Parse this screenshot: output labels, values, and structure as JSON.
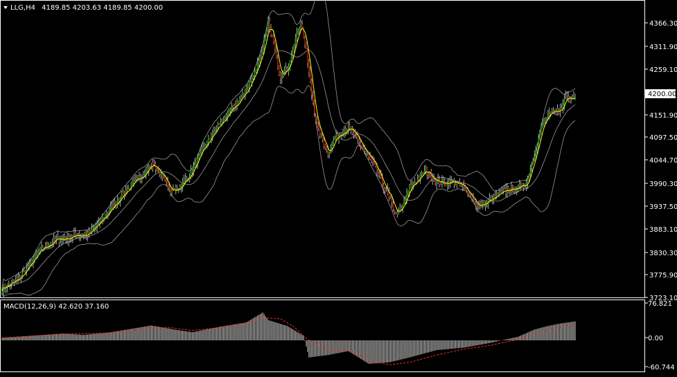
{
  "header": {
    "symbol_timeframe": "LLG,H4",
    "ohlc": "4189.85 4203.63 4189.85 4200.00"
  },
  "price_axis": {
    "ticks": [
      "4366.30",
      "4311.90",
      "4259.10",
      "4151.90",
      "4097.50",
      "4044.70",
      "3990.30",
      "3937.50",
      "3883.10",
      "3830.30",
      "3775.90",
      "3723.10"
    ],
    "current_price_label": "4200.00"
  },
  "macd": {
    "label": "MACD(12,26,9) 42.620 37.160",
    "ticks": [
      "76.821",
      "0.00",
      "-60.744"
    ]
  },
  "colors": {
    "background": "#000000",
    "bull_candle": "#1fc41f",
    "bear_candle": "#e01414",
    "wick": "#d0d0d0",
    "ma_line": "#ffff00",
    "bands": "#9a9a9a",
    "macd_hist": "#e6e6e6",
    "macd_signal": "#ff2a2a",
    "axis": "#ffffff"
  },
  "chart_data": [
    {
      "type": "candlestick",
      "symbol": "LLG",
      "timeframe": "H4",
      "ylim": [
        3723.1,
        4390
      ],
      "yticks": [
        4366.3,
        4311.9,
        4259.1,
        4151.9,
        4097.5,
        4044.7,
        3990.3,
        3937.5,
        3883.1,
        3830.3,
        3775.9,
        3723.1
      ],
      "last_price": 4200.0,
      "overlays": [
        "moving average",
        "bollinger bands"
      ],
      "close_path": [
        [
          0,
          3745
        ],
        [
          12,
          3765
        ],
        [
          20,
          3800
        ],
        [
          28,
          3835
        ],
        [
          35,
          3850
        ],
        [
          40,
          3860
        ],
        [
          48,
          3862
        ],
        [
          55,
          3870
        ],
        [
          63,
          3870
        ],
        [
          72,
          3900
        ],
        [
          82,
          3940
        ],
        [
          90,
          3970
        ],
        [
          100,
          4000
        ],
        [
          110,
          4035
        ],
        [
          118,
          4010
        ],
        [
          124,
          3970
        ],
        [
          130,
          3980
        ],
        [
          138,
          4010
        ],
        [
          148,
          4070
        ],
        [
          158,
          4120
        ],
        [
          168,
          4160
        ],
        [
          178,
          4200
        ],
        [
          186,
          4250
        ],
        [
          192,
          4310
        ],
        [
          196,
          4370
        ],
        [
          200,
          4320
        ],
        [
          204,
          4240
        ],
        [
          210,
          4260
        ],
        [
          214,
          4310
        ],
        [
          220,
          4370
        ],
        [
          224,
          4300
        ],
        [
          228,
          4200
        ],
        [
          232,
          4120
        ],
        [
          236,
          4090
        ],
        [
          240,
          4060
        ],
        [
          244,
          4090
        ],
        [
          250,
          4110
        ],
        [
          255,
          4120
        ],
        [
          262,
          4090
        ],
        [
          268,
          4060
        ],
        [
          274,
          4030
        ],
        [
          280,
          3990
        ],
        [
          286,
          3950
        ],
        [
          290,
          3920
        ],
        [
          294,
          3930
        ],
        [
          300,
          3980
        ],
        [
          306,
          4000
        ],
        [
          312,
          4020
        ],
        [
          318,
          4000
        ],
        [
          324,
          3990
        ],
        [
          332,
          3995
        ],
        [
          340,
          3980
        ],
        [
          346,
          3960
        ],
        [
          350,
          3935
        ],
        [
          356,
          3945
        ],
        [
          364,
          3960
        ],
        [
          372,
          3975
        ],
        [
          380,
          3980
        ],
        [
          386,
          3990
        ],
        [
          392,
          4060
        ],
        [
          398,
          4130
        ],
        [
          402,
          4150
        ],
        [
          408,
          4160
        ],
        [
          412,
          4165
        ],
        [
          415,
          4200
        ],
        [
          418,
          4190
        ],
        [
          422,
          4200
        ]
      ]
    },
    {
      "type": "bar",
      "name": "MACD(12,26,9)",
      "values_printed": {
        "macd": 42.62,
        "signal": 37.16
      },
      "ylim": [
        -60.744,
        76.821
      ],
      "yticks": [
        76.821,
        0.0,
        -60.744
      ],
      "hist_path": [
        [
          0,
          5
        ],
        [
          20,
          10
        ],
        [
          45,
          15
        ],
        [
          60,
          12
        ],
        [
          80,
          18
        ],
        [
          110,
          33
        ],
        [
          125,
          25
        ],
        [
          140,
          18
        ],
        [
          160,
          30
        ],
        [
          180,
          40
        ],
        [
          192,
          62
        ],
        [
          196,
          45
        ],
        [
          210,
          32
        ],
        [
          222,
          10
        ],
        [
          226,
          -35
        ],
        [
          240,
          -30
        ],
        [
          255,
          -22
        ],
        [
          270,
          -48
        ],
        [
          285,
          -45
        ],
        [
          300,
          -35
        ],
        [
          320,
          -20
        ],
        [
          340,
          -15
        ],
        [
          360,
          -5
        ],
        [
          380,
          8
        ],
        [
          392,
          24
        ],
        [
          402,
          32
        ],
        [
          412,
          38
        ],
        [
          422,
          42
        ]
      ],
      "signal_path": [
        [
          0,
          6
        ],
        [
          20,
          9
        ],
        [
          45,
          14
        ],
        [
          60,
          15
        ],
        [
          80,
          16
        ],
        [
          110,
          28
        ],
        [
          125,
          28
        ],
        [
          140,
          22
        ],
        [
          160,
          28
        ],
        [
          180,
          38
        ],
        [
          192,
          50
        ],
        [
          205,
          48
        ],
        [
          215,
          30
        ],
        [
          225,
          2
        ],
        [
          240,
          -18
        ],
        [
          258,
          -22
        ],
        [
          272,
          -42
        ],
        [
          285,
          -50
        ],
        [
          300,
          -45
        ],
        [
          320,
          -30
        ],
        [
          340,
          -18
        ],
        [
          360,
          -10
        ],
        [
          380,
          2
        ],
        [
          392,
          12
        ],
        [
          402,
          22
        ],
        [
          412,
          30
        ],
        [
          422,
          37
        ]
      ]
    }
  ]
}
